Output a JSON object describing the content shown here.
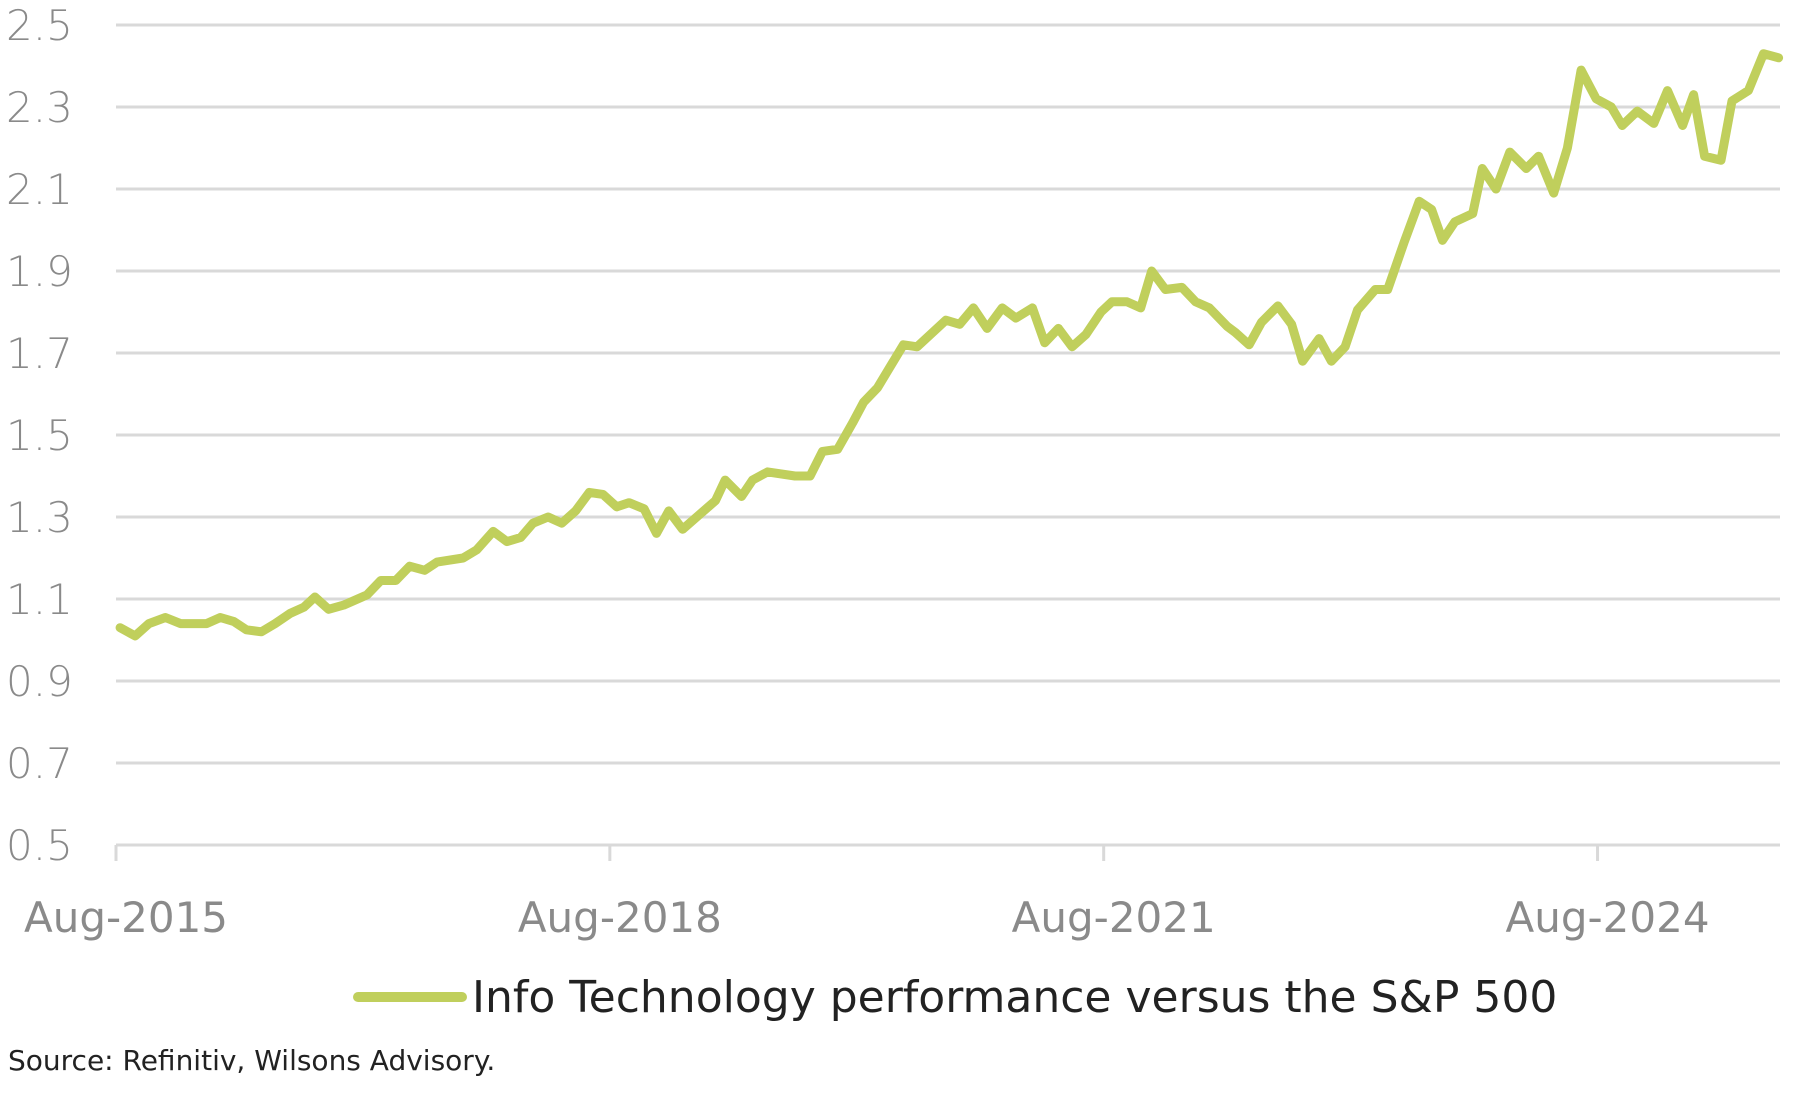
{
  "chart_data": {
    "type": "line",
    "title": "",
    "xlabel": "",
    "ylabel": "",
    "ylim": [
      0.5,
      2.5
    ],
    "yticks": [
      "0.5",
      "0.7",
      "0.9",
      "1.1",
      "1.3",
      "1.5",
      "1.7",
      "1.9",
      "2.1",
      "2.3",
      "2.5"
    ],
    "x_unit": "months since Aug-2015",
    "xlim": [
      0,
      121.3
    ],
    "xticks": [
      {
        "label": "Aug-2015",
        "month": 0
      },
      {
        "label": "Aug-2018",
        "month": 36
      },
      {
        "label": "Aug-2021",
        "month": 72
      },
      {
        "label": "Aug-2024",
        "month": 108
      }
    ],
    "grid": true,
    "legend_position": "bottom",
    "series": [
      {
        "name": "Info Technology performance versus the S&P 500",
        "color": "#c0cf5c",
        "x": [
          0.3,
          1.4,
          2.4,
          3.6,
          4.7,
          5.7,
          6.6,
          7.6,
          8.6,
          9.5,
          10.6,
          11.6,
          12.7,
          13.7,
          14.5,
          15.5,
          16.6,
          18.3,
          19.3,
          20.4,
          21.4,
          22.5,
          23.4,
          25.3,
          26.3,
          27.5,
          28.5,
          29.5,
          30.4,
          31.5,
          32.5,
          33.5,
          34.5,
          35.5,
          36.5,
          37.4,
          38.5,
          39.4,
          40.3,
          41.3,
          42.5,
          43.7,
          44.4,
          45.6,
          46.4,
          47.5,
          49.5,
          50.6,
          51.5,
          52.6,
          53.7,
          54.5,
          55.5,
          57.4,
          58.4,
          60.5,
          61.5,
          62.5,
          63.5,
          64.6,
          65.6,
          66.8,
          67.7,
          68.7,
          69.7,
          70.7,
          71.8,
          72.6,
          73.7,
          74.7,
          75.5,
          76.5,
          77.7,
          78.7,
          79.7,
          81.0,
          81.6,
          82.6,
          83.5,
          84.7,
          85.7,
          86.5,
          87.7,
          88.6,
          89.6,
          90.5,
          91.8,
          92.7,
          93.9,
          95.0,
          95.9,
          96.7,
          97.6,
          98.9,
          99.6,
          100.6,
          101.6,
          102.8,
          103.7,
          104.8,
          105.8,
          106.8,
          107.9,
          109.0,
          109.8,
          110.9,
          112.1,
          113.1,
          114.2,
          115.0,
          115.8,
          117.0,
          117.8,
          119.0,
          120.1,
          121.2
        ],
        "values": [
          1.03,
          1.01,
          1.04,
          1.055,
          1.04,
          1.04,
          1.04,
          1.055,
          1.045,
          1.025,
          1.02,
          1.04,
          1.065,
          1.08,
          1.105,
          1.075,
          1.085,
          1.11,
          1.145,
          1.145,
          1.18,
          1.17,
          1.19,
          1.2,
          1.22,
          1.265,
          1.24,
          1.25,
          1.285,
          1.3,
          1.285,
          1.315,
          1.36,
          1.355,
          1.325,
          1.335,
          1.32,
          1.26,
          1.315,
          1.27,
          1.305,
          1.34,
          1.39,
          1.35,
          1.39,
          1.41,
          1.4,
          1.4,
          1.46,
          1.465,
          1.53,
          1.58,
          1.615,
          1.72,
          1.715,
          1.78,
          1.77,
          1.81,
          1.76,
          1.81,
          1.785,
          1.81,
          1.725,
          1.76,
          1.715,
          1.745,
          1.8,
          1.825,
          1.825,
          1.81,
          1.9,
          1.855,
          1.86,
          1.825,
          1.81,
          1.765,
          1.75,
          1.72,
          1.775,
          1.815,
          1.77,
          1.68,
          1.735,
          1.68,
          1.715,
          1.805,
          1.855,
          1.855,
          1.97,
          2.07,
          2.05,
          1.975,
          2.02,
          2.04,
          2.15,
          2.1,
          2.19,
          2.15,
          2.18,
          2.09,
          2.2,
          2.39,
          2.32,
          2.3,
          2.255,
          2.29,
          2.26,
          2.34,
          2.255,
          2.33,
          2.18,
          2.17,
          2.315,
          2.34,
          2.43,
          2.42
        ]
      }
    ]
  },
  "source": "Source: Refinitiv, Wilsons Advisory."
}
